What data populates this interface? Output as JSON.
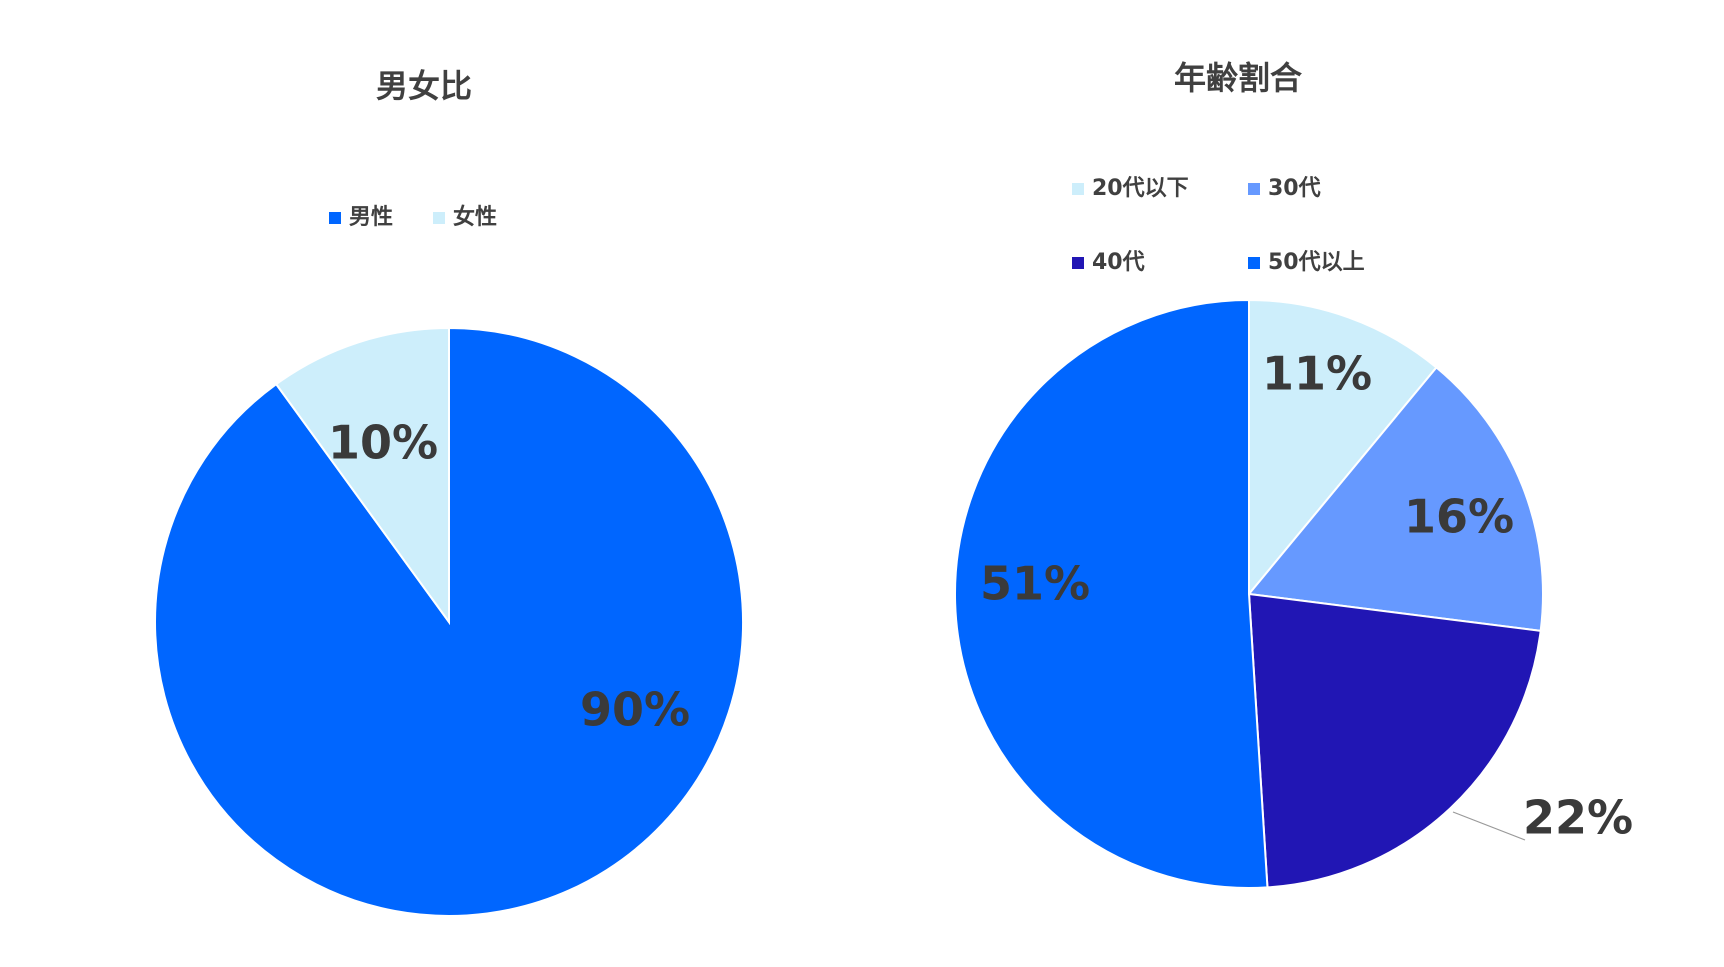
{
  "chart_data": [
    {
      "type": "pie",
      "title": "男女比",
      "categories": [
        "男性",
        "女性"
      ],
      "values": [
        90,
        10
      ],
      "value_labels": [
        "90%",
        "10%"
      ],
      "colors": [
        "#0066ff",
        "#cdeefb"
      ]
    },
    {
      "type": "pie",
      "title": "年齢割合",
      "categories": [
        "20代以下",
        "30代",
        "40代",
        "50代以上"
      ],
      "values": [
        11,
        16,
        22,
        51
      ],
      "value_labels": [
        "11%",
        "16%",
        "22%",
        "51%"
      ],
      "colors": [
        "#cdeefb",
        "#6699ff",
        "#2116b4",
        "#0066ff"
      ]
    }
  ]
}
